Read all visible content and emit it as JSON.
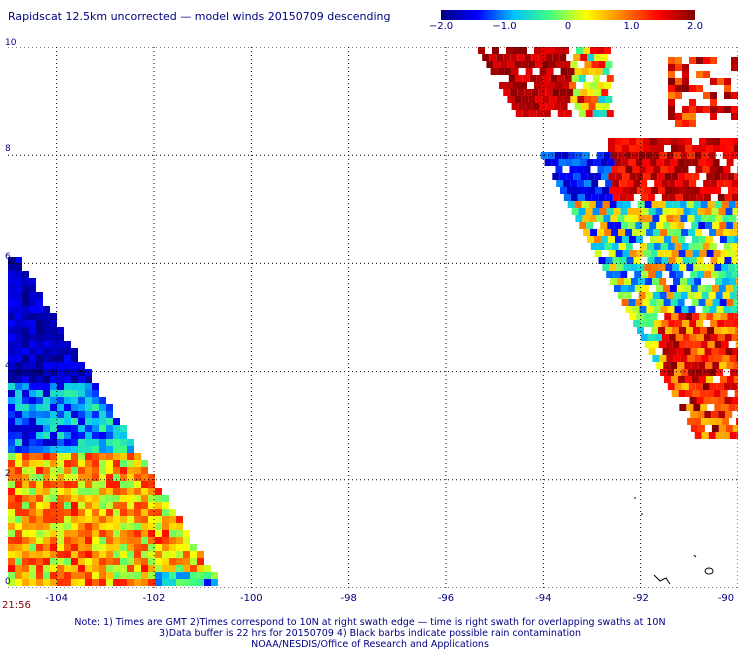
{
  "title": "Rapidscat 12.5km uncorrected — model winds 20150709 descending",
  "colorbar": {
    "ticks": [
      "−2.0",
      "−1.0",
      "0",
      "1.0",
      "2.0"
    ],
    "tick_values": [
      -2.0,
      -1.0,
      0,
      1.0,
      2.0
    ],
    "range": [
      -2.0,
      2.0
    ],
    "colors": [
      "#000080",
      "#0000ff",
      "#00c0ff",
      "#40ff80",
      "#ffff00",
      "#ff8000",
      "#ff0000",
      "#800000"
    ]
  },
  "axes": {
    "x_ticks": [
      "-104",
      "-102",
      "-100",
      "-98",
      "-96",
      "-94",
      "-92",
      "-90"
    ],
    "x_values": [
      -104,
      -102,
      -100,
      -98,
      -96,
      -94,
      -92,
      -90
    ],
    "y_ticks": [
      "0",
      "2",
      "4",
      "6",
      "8",
      "10"
    ],
    "y_values": [
      0,
      2,
      4,
      6,
      8,
      10
    ],
    "lon_range": [
      -105,
      -90
    ],
    "lat_range": [
      0,
      10
    ],
    "grid": "dotted"
  },
  "swaths": [
    {
      "name": "west",
      "time": "21:56"
    },
    {
      "name": "east"
    }
  ],
  "notes": [
    "Note: 1) Times are GMT 2)Times correspond to 10N at right swath edge — time is right swath for overlapping swaths at 10N",
    "3)Data buffer is 22 hrs for 20150709 4) Black barbs indicate possible rain contamination",
    "NOAA/NESDIS/Office of Research and Applications"
  ]
}
